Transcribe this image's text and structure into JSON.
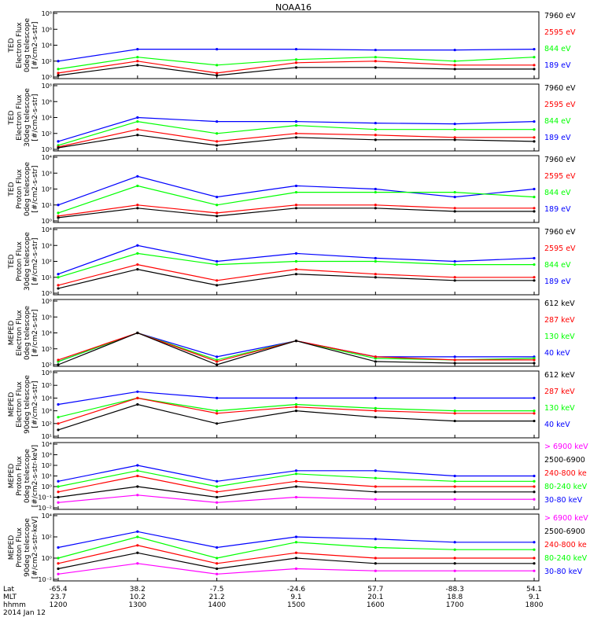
{
  "title": "NOAA16",
  "time_axis": {
    "row_labels": [
      "Lat",
      "MLT",
      "hhmm"
    ],
    "date": "2014 Jan 12",
    "lat": [
      "-65.4",
      "38.2",
      "-7.5",
      "-24.6",
      "57.7",
      "-88.3",
      "54.1"
    ],
    "mlt": [
      "23.7",
      "10.2",
      "21.2",
      "9.1",
      "20.1",
      "18.8",
      "9.1"
    ],
    "hhmm": [
      "1200",
      "1300",
      "1400",
      "1500",
      "1600",
      "1700",
      "1800"
    ]
  },
  "colors": {
    "black": "#000000",
    "red": "#ff0000",
    "green": "#00ff00",
    "blue": "#0000ff",
    "magenta": "#ff00ff"
  },
  "chart_data": [
    {
      "type": "line",
      "ylabel": [
        "TED",
        "Electron Flux",
        "0deg telescope",
        "[#/cm2-s-str]"
      ],
      "y_ticks": [
        "10⁰",
        "10²",
        "10⁴",
        "10⁶",
        "10⁸"
      ],
      "log_scale": true,
      "legend": [
        {
          "label": "7960 eV",
          "color": "black"
        },
        {
          "label": "2595 eV",
          "color": "red"
        },
        {
          "label": "844 eV",
          "color": "green"
        },
        {
          "label": "189 eV",
          "color": "blue"
        }
      ],
      "x": [
        "1200",
        "1300",
        "1400",
        "1500",
        "1600",
        "1700",
        "1800"
      ],
      "series": [
        {
          "name": "189 eV",
          "color": "blue",
          "values": [
            2,
            3.5,
            3.5,
            3.5,
            3.4,
            3.4,
            3.5
          ]
        },
        {
          "name": "844 eV",
          "color": "green",
          "values": [
            1,
            2.5,
            1.5,
            2.2,
            2.5,
            2,
            2.5
          ]
        },
        {
          "name": "2595 eV",
          "color": "red",
          "values": [
            0.5,
            2,
            0.5,
            1.8,
            2,
            1.5,
            1.5
          ]
        },
        {
          "name": "7960 eV",
          "color": "black",
          "values": [
            0.2,
            1.5,
            0.2,
            1.2,
            1.2,
            1,
            1
          ]
        }
      ]
    },
    {
      "type": "line",
      "ylabel": [
        "TED",
        "Electron Flux",
        "30deg telescope",
        "[#/cm2-s-str]"
      ],
      "y_ticks": [
        "10⁰",
        "10²",
        "10⁴",
        "10⁶",
        "10⁸"
      ],
      "log_scale": true,
      "legend": [
        {
          "label": "7960 eV",
          "color": "black"
        },
        {
          "label": "2595 eV",
          "color": "red"
        },
        {
          "label": "844 eV",
          "color": "green"
        },
        {
          "label": "189 eV",
          "color": "blue"
        }
      ],
      "x": [
        "1200",
        "1300",
        "1400",
        "1500",
        "1600",
        "1700",
        "1800"
      ],
      "series": [
        {
          "name": "189 eV",
          "color": "blue",
          "values": [
            1,
            4,
            3.5,
            3.5,
            3.3,
            3.2,
            3.5
          ]
        },
        {
          "name": "844 eV",
          "color": "green",
          "values": [
            0.5,
            3.5,
            2,
            3,
            2.5,
            2.5,
            2.5
          ]
        },
        {
          "name": "2595 eV",
          "color": "red",
          "values": [
            0.3,
            2.5,
            1,
            2,
            1.8,
            1.5,
            1.5
          ]
        },
        {
          "name": "7960 eV",
          "color": "black",
          "values": [
            0.2,
            1.8,
            0.5,
            1.5,
            1.2,
            1.2,
            1
          ]
        }
      ]
    },
    {
      "type": "line",
      "ylabel": [
        "TED",
        "Proton Flux",
        "0deg telescope",
        "[#/cm2-s-str]"
      ],
      "y_ticks": [
        "10⁰",
        "10¹",
        "10²",
        "10³",
        "10⁴"
      ],
      "log_scale": true,
      "legend": [
        {
          "label": "7960 eV",
          "color": "black"
        },
        {
          "label": "2595 eV",
          "color": "red"
        },
        {
          "label": "844 eV",
          "color": "green"
        },
        {
          "label": "189 eV",
          "color": "blue"
        }
      ],
      "x": [
        "1200",
        "1300",
        "1400",
        "1500",
        "1600",
        "1700",
        "1800"
      ],
      "series": [
        {
          "name": "189 eV",
          "color": "blue",
          "values": [
            1,
            2.8,
            1.5,
            2.2,
            2,
            1.5,
            2
          ]
        },
        {
          "name": "844 eV",
          "color": "green",
          "values": [
            0.5,
            2.2,
            1,
            1.8,
            1.8,
            1.8,
            1.5
          ]
        },
        {
          "name": "2595 eV",
          "color": "red",
          "values": [
            0.3,
            1,
            0.5,
            1,
            1,
            0.8,
            0.8
          ]
        },
        {
          "name": "7960 eV",
          "color": "black",
          "values": [
            0.2,
            0.8,
            0.3,
            0.8,
            0.8,
            0.6,
            0.6
          ]
        }
      ]
    },
    {
      "type": "line",
      "ylabel": [
        "TED",
        "Proton Flux",
        "30deg telescope",
        "[#/cm2-s-str]"
      ],
      "y_ticks": [
        "10⁰",
        "10¹",
        "10²",
        "10³",
        "10⁴"
      ],
      "log_scale": true,
      "legend": [
        {
          "label": "7960 eV",
          "color": "black"
        },
        {
          "label": "2595 eV",
          "color": "red"
        },
        {
          "label": "844 eV",
          "color": "green"
        },
        {
          "label": "189 eV",
          "color": "blue"
        }
      ],
      "x": [
        "1200",
        "1300",
        "1400",
        "1500",
        "1600",
        "1700",
        "1800"
      ],
      "series": [
        {
          "name": "189 eV",
          "color": "blue",
          "values": [
            1.2,
            3,
            2,
            2.5,
            2.2,
            2,
            2.2
          ]
        },
        {
          "name": "844 eV",
          "color": "green",
          "values": [
            1,
            2.5,
            1.8,
            2,
            2,
            1.8,
            1.8
          ]
        },
        {
          "name": "2595 eV",
          "color": "red",
          "values": [
            0.5,
            1.8,
            0.8,
            1.5,
            1.2,
            1,
            1
          ]
        },
        {
          "name": "7960 eV",
          "color": "black",
          "values": [
            0.3,
            1.5,
            0.5,
            1.2,
            1,
            0.8,
            0.8
          ]
        }
      ]
    },
    {
      "type": "line",
      "ylabel": [
        "MEPED",
        "Electron Flux",
        "0deg telescope",
        "[#/cm2-s-str]"
      ],
      "y_ticks": [
        "10²",
        "10³",
        "10⁴",
        "10⁵",
        "10⁶"
      ],
      "log_scale": true,
      "legend": [
        {
          "label": "612 keV",
          "color": "black"
        },
        {
          "label": "287 keV",
          "color": "red"
        },
        {
          "label": "130 keV",
          "color": "green"
        },
        {
          "label": "40 keV",
          "color": "blue"
        }
      ],
      "x": [
        "1200",
        "1300",
        "1400",
        "1500",
        "1600",
        "1700",
        "1800"
      ],
      "series": [
        {
          "name": "40 keV",
          "color": "blue",
          "values": [
            2.2,
            4,
            2.5,
            3.5,
            2.5,
            2.5,
            2.5
          ]
        },
        {
          "name": "130 keV",
          "color": "green",
          "values": [
            2.2,
            4,
            2.3,
            3.5,
            2.4,
            2.3,
            2.4
          ]
        },
        {
          "name": "287 keV",
          "color": "red",
          "values": [
            2.3,
            4,
            2.2,
            3.5,
            2.5,
            2.3,
            2.3
          ]
        },
        {
          "name": "612 keV",
          "color": "black",
          "values": [
            2,
            4,
            2,
            3.5,
            2.2,
            2.1,
            2.1
          ]
        }
      ]
    },
    {
      "type": "line",
      "ylabel": [
        "MEPED",
        "Electron Flux",
        "90deg telescope",
        "[#/cm2-s-str]"
      ],
      "y_ticks": [
        "10¹",
        "10²",
        "10³",
        "10⁴",
        "10⁵",
        "10⁶"
      ],
      "log_scale": true,
      "legend": [
        {
          "label": "612 keV",
          "color": "black"
        },
        {
          "label": "287 keV",
          "color": "red"
        },
        {
          "label": "130 keV",
          "color": "green"
        },
        {
          "label": "40 keV",
          "color": "blue"
        }
      ],
      "x": [
        "1200",
        "1300",
        "1400",
        "1500",
        "1600",
        "1700",
        "1800"
      ],
      "series": [
        {
          "name": "40 keV",
          "color": "blue",
          "values": [
            3.5,
            4.5,
            4,
            4,
            4,
            4,
            4
          ]
        },
        {
          "name": "130 keV",
          "color": "green",
          "values": [
            2.5,
            4,
            3,
            3.5,
            3.2,
            3,
            3
          ]
        },
        {
          "name": "287 keV",
          "color": "red",
          "values": [
            2,
            4,
            2.8,
            3.3,
            3,
            2.8,
            2.8
          ]
        },
        {
          "name": "612 keV",
          "color": "black",
          "values": [
            1.5,
            3.5,
            2,
            3,
            2.5,
            2.2,
            2.2
          ]
        }
      ]
    },
    {
      "type": "line",
      "ylabel": [
        "MEPED",
        "Proton Flux",
        "0deg telescope",
        "[#/cm2-s-str-keV]"
      ],
      "y_ticks": [
        "10⁻²",
        "10⁻¹",
        "10⁰",
        "10¹",
        "10²",
        "10³",
        "10⁴"
      ],
      "log_scale": true,
      "legend": [
        {
          "label": "> 6900 keV",
          "color": "magenta"
        },
        {
          "label": "2500-6900",
          "color": "black"
        },
        {
          "label": "240-800 ke",
          "color": "red"
        },
        {
          "label": "80-240 keV",
          "color": "green"
        },
        {
          "label": "30-80 keV",
          "color": "blue"
        }
      ],
      "x": [
        "1200",
        "1300",
        "1400",
        "1500",
        "1600",
        "1700",
        "1800"
      ],
      "series": [
        {
          "name": "30-80 keV",
          "color": "blue",
          "values": [
            0.5,
            2,
            0.5,
            1.5,
            1.5,
            1,
            1
          ]
        },
        {
          "name": "80-240 keV",
          "color": "green",
          "values": [
            0,
            1.5,
            0,
            1.2,
            0.8,
            0.5,
            0.5
          ]
        },
        {
          "name": "240-800 ke",
          "color": "red",
          "values": [
            -0.5,
            1,
            -0.5,
            0.5,
            0,
            0,
            0
          ]
        },
        {
          "name": "2500-6900",
          "color": "black",
          "values": [
            -1,
            0,
            -1,
            0,
            -0.5,
            -0.5,
            -0.5
          ]
        },
        {
          "name": "> 6900 keV",
          "color": "magenta",
          "values": [
            -1.5,
            -0.8,
            -1.5,
            -1,
            -1.2,
            -1.2,
            -1.2
          ]
        }
      ]
    },
    {
      "type": "line",
      "ylabel": [
        "MEPED",
        "Proton Flux",
        "90deg telescope",
        "[#/cm2-s-str-keV]"
      ],
      "y_ticks": [
        "10⁻²",
        "10⁰",
        "10²",
        "10⁴"
      ],
      "log_scale": true,
      "legend": [
        {
          "label": "> 6900 keV",
          "color": "magenta"
        },
        {
          "label": "2500-6900",
          "color": "black"
        },
        {
          "label": "240-800 ke",
          "color": "red"
        },
        {
          "label": "80-240 keV",
          "color": "green"
        },
        {
          "label": "30-80 keV",
          "color": "blue"
        }
      ],
      "x": [
        "1200",
        "1300",
        "1400",
        "1500",
        "1600",
        "1700",
        "1800"
      ],
      "series": [
        {
          "name": "30-80 keV",
          "color": "blue",
          "values": [
            1,
            2.5,
            1,
            2,
            1.8,
            1.5,
            1.5
          ]
        },
        {
          "name": "80-240 keV",
          "color": "green",
          "values": [
            0,
            2,
            0,
            1.5,
            1,
            0.8,
            0.8
          ]
        },
        {
          "name": "240-800 ke",
          "color": "red",
          "values": [
            -0.5,
            1.2,
            -0.5,
            0.5,
            0,
            0,
            0
          ]
        },
        {
          "name": "2500-6900",
          "color": "black",
          "values": [
            -1,
            0.5,
            -1,
            0,
            -0.5,
            -0.5,
            -0.5
          ]
        },
        {
          "name": "> 6900 keV",
          "color": "magenta",
          "values": [
            -1.5,
            -0.5,
            -1.5,
            -1,
            -1.2,
            -1.2,
            -1.2
          ]
        }
      ]
    }
  ]
}
